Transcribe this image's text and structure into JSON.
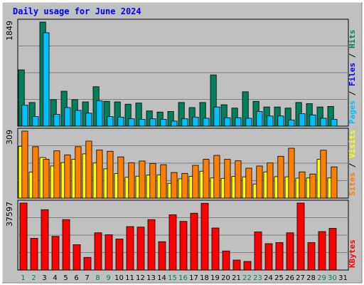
{
  "chart_data": [
    {
      "type": "bar",
      "title": "Daily usage for June 2024",
      "y_max_label": "1849",
      "side_label_parts": [
        "Pages",
        " / ",
        "Files",
        " / ",
        "Hits"
      ],
      "categories": [
        "1",
        "2",
        "3",
        "4",
        "5",
        "6",
        "7",
        "8",
        "9",
        "10",
        "11",
        "12",
        "13",
        "14",
        "15",
        "16",
        "17",
        "18",
        "19",
        "20",
        "21",
        "22",
        "23",
        "24",
        "25",
        "26",
        "27",
        "28",
        "29",
        "30",
        "31"
      ],
      "weekend_days": [
        "1",
        "2",
        "8",
        "9",
        "15",
        "16",
        "22",
        "23",
        "29",
        "30"
      ],
      "series": [
        {
          "name": "Hits",
          "color": "#00805c",
          "values": [
            1000,
            420,
            1849,
            470,
            620,
            470,
            430,
            700,
            440,
            430,
            390,
            410,
            270,
            250,
            260,
            420,
            330,
            420,
            910,
            380,
            320,
            610,
            440,
            340,
            340,
            320,
            420,
            400,
            340,
            350,
            0
          ]
        },
        {
          "name": "Files",
          "color": "#00c0ff",
          "values": [
            375,
            170,
            1660,
            210,
            330,
            280,
            230,
            450,
            170,
            160,
            130,
            120,
            130,
            120,
            90,
            130,
            160,
            140,
            340,
            150,
            150,
            140,
            260,
            180,
            180,
            110,
            220,
            200,
            140,
            120,
            0
          ]
        },
        {
          "name": "Pages",
          "color": "#00c0ff",
          "values": [
            0,
            0,
            0,
            0,
            0,
            0,
            0,
            0,
            0,
            0,
            0,
            0,
            0,
            0,
            0,
            0,
            0,
            0,
            0,
            0,
            0,
            0,
            0,
            0,
            0,
            0,
            0,
            0,
            0,
            0,
            0
          ]
        }
      ],
      "ylim": [
        0,
        1849
      ]
    },
    {
      "type": "bar",
      "y_max_label": "309",
      "side_label_parts": [
        "Sites",
        " / ",
        "Visits"
      ],
      "categories": [
        "1",
        "2",
        "3",
        "4",
        "5",
        "6",
        "7",
        "8",
        "9",
        "10",
        "11",
        "12",
        "13",
        "14",
        "15",
        "16",
        "17",
        "18",
        "19",
        "20",
        "21",
        "22",
        "23",
        "24",
        "25",
        "26",
        "27",
        "28",
        "29",
        "30",
        "31"
      ],
      "series": [
        {
          "name": "Visits",
          "color": "#ffff00",
          "values": [
            239,
            120,
            187,
            148,
            164,
            179,
            204,
            162,
            135,
            113,
            96,
            101,
            106,
            107,
            68,
            89,
            100,
            124,
            93,
            91,
            100,
            98,
            65,
            121,
            99,
            98,
            92,
            93,
            179,
            93,
            0
          ]
        },
        {
          "name": "Sites",
          "color": "#ff8000",
          "values": [
            309,
            237,
            179,
            218,
            199,
            237,
            263,
            222,
            216,
            190,
            163,
            171,
            160,
            154,
            118,
            114,
            151,
            179,
            197,
            179,
            172,
            138,
            148,
            162,
            193,
            230,
            121,
            111,
            221,
            144,
            0
          ]
        }
      ],
      "ylim": [
        0,
        309
      ]
    },
    {
      "type": "bar",
      "y_max_label": "37597",
      "side_label_parts": [
        "KBytes"
      ],
      "categories": [
        "1",
        "2",
        "3",
        "4",
        "5",
        "6",
        "7",
        "8",
        "9",
        "10",
        "11",
        "12",
        "13",
        "14",
        "15",
        "16",
        "17",
        "18",
        "19",
        "20",
        "21",
        "22",
        "23",
        "24",
        "25",
        "26",
        "27",
        "28",
        "29",
        "30",
        "31"
      ],
      "series": [
        {
          "name": "KBytes",
          "color": "#ff0000",
          "values": [
            37597,
            17800,
            33900,
            18900,
            28300,
            14200,
            7100,
            20900,
            19800,
            17400,
            24400,
            24100,
            28300,
            15900,
            31000,
            27300,
            31900,
            37500,
            23600,
            10700,
            5600,
            4800,
            21400,
            14800,
            15400,
            20900,
            37600,
            15400,
            21600,
            23400,
            0
          ]
        }
      ],
      "ylim": [
        0,
        37597
      ]
    }
  ]
}
